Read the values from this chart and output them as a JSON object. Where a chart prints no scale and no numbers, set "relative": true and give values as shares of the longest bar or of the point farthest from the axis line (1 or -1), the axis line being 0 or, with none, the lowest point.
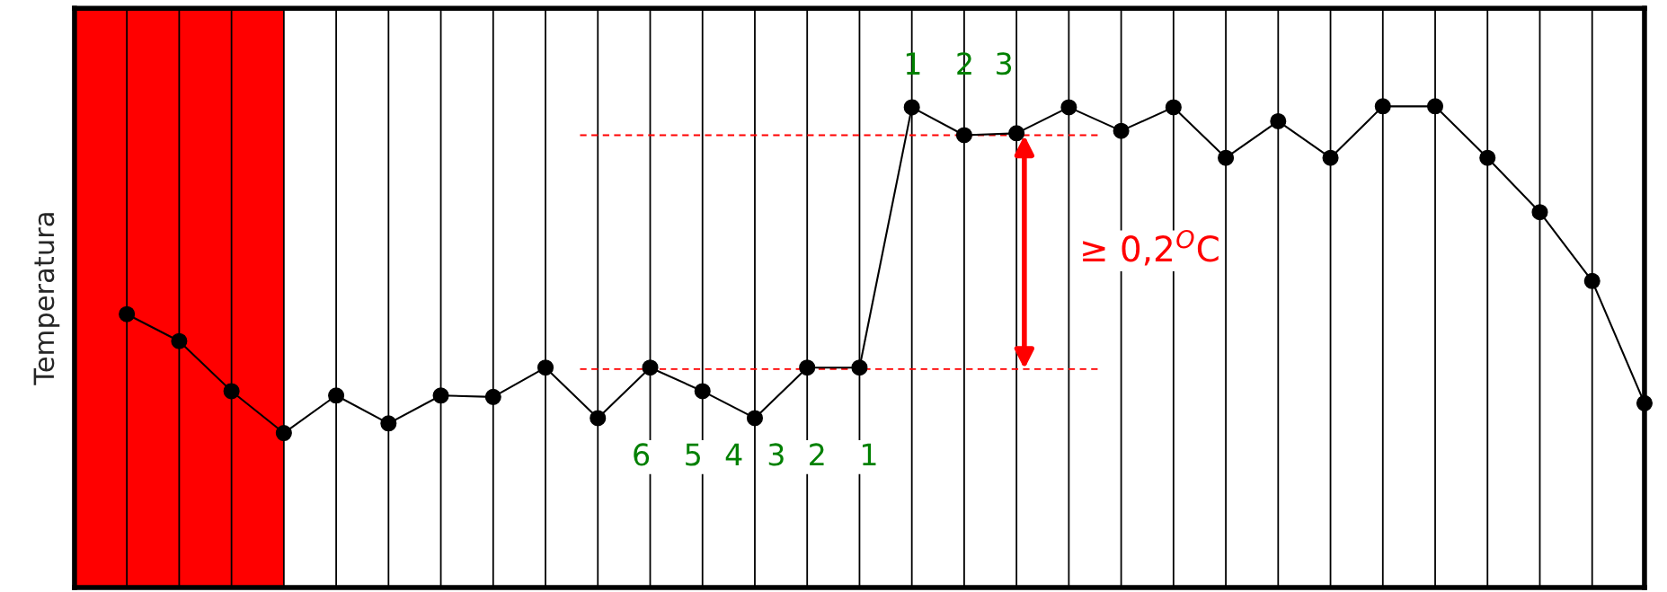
{
  "chart_data": {
    "type": "line",
    "ylabel": "Temperatura",
    "relative": true,
    "grid": "x",
    "marker": "circle",
    "line_style": "solid",
    "categories": [
      null,
      null,
      null,
      null,
      null,
      null,
      null,
      null,
      null,
      null,
      null,
      null,
      null,
      null,
      null,
      null,
      null,
      null,
      null,
      null,
      null,
      null,
      null,
      null,
      null,
      null,
      null,
      null,
      null,
      null,
      null
    ],
    "series": [
      {
        "color": "#000000",
        "values": [
          null,
          0.568,
          0.512,
          0.408,
          0.321,
          0.399,
          0.341,
          0.399,
          0.396,
          0.457,
          0.352,
          0.457,
          0.408,
          0.352,
          0.457,
          0.457,
          0.998,
          0.94,
          0.944,
          0.998,
          0.949,
          0.998,
          0.893,
          0.969,
          0.893,
          1,
          1,
          0.893,
          0.78,
          0.637,
          0.383
        ]
      }
    ],
    "ref_lines": [
      {
        "axis": "y",
        "value": 0.94,
        "color": "#ff0000",
        "line_style": "dashed"
      },
      {
        "axis": "y",
        "value": 0.454,
        "color": "#ff0000",
        "line_style": "dashed"
      }
    ],
    "annotations": [
      "6",
      "5",
      "4",
      "3",
      "2",
      "1",
      "1",
      "2",
      "3",
      "≥ 0,2$^{O}$C"
    ]
  }
}
